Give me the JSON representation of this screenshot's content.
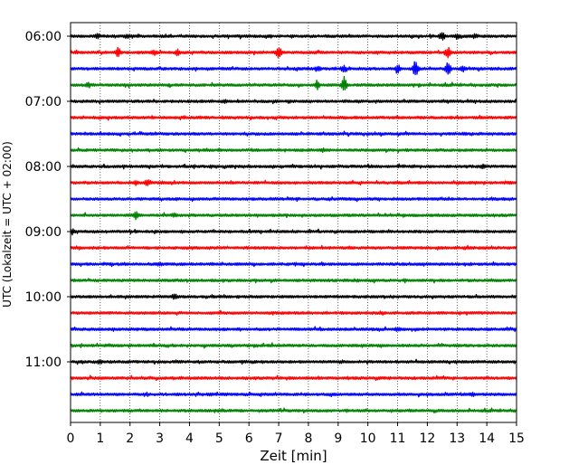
{
  "chart_data": {
    "type": "line",
    "title": "",
    "xlabel": "Zeit  [min]",
    "ylabel": "UTC (Lokalzeit = UTC + 02:00)",
    "xlim": [
      0,
      15
    ],
    "x_ticks": [
      "0",
      "1",
      "2",
      "3",
      "4",
      "5",
      "6",
      "7",
      "8",
      "9",
      "10",
      "11",
      "12",
      "13",
      "14",
      "15"
    ],
    "y_ticks": [
      "06:00",
      "07:00",
      "08:00",
      "09:00",
      "10:00",
      "11:00"
    ],
    "trace_count": 24,
    "trace_interval_min": 15,
    "grid": {
      "vertical": true,
      "style": "dotted"
    },
    "series_colors": [
      "#000000",
      "#ff0000",
      "#0000ff",
      "#008000"
    ],
    "events": [
      {
        "trace": 0,
        "time_min": 0.9,
        "amplitude": 0.5
      },
      {
        "trace": 0,
        "time_min": 1.9,
        "amplitude": 0.3
      },
      {
        "trace": 0,
        "time_min": 12.5,
        "amplitude": 0.7
      },
      {
        "trace": 0,
        "time_min": 13.0,
        "amplitude": 0.6
      },
      {
        "trace": 0,
        "time_min": 13.6,
        "amplitude": 0.4
      },
      {
        "trace": 1,
        "time_min": 1.6,
        "amplitude": 0.9
      },
      {
        "trace": 1,
        "time_min": 2.8,
        "amplitude": 0.5
      },
      {
        "trace": 1,
        "time_min": 3.6,
        "amplitude": 0.6
      },
      {
        "trace": 1,
        "time_min": 7.0,
        "amplitude": 1.2
      },
      {
        "trace": 1,
        "time_min": 12.7,
        "amplitude": 1.2
      },
      {
        "trace": 2,
        "time_min": 8.3,
        "amplitude": 0.5
      },
      {
        "trace": 2,
        "time_min": 9.2,
        "amplitude": 0.6
      },
      {
        "trace": 2,
        "time_min": 11.0,
        "amplitude": 1.0
      },
      {
        "trace": 2,
        "time_min": 11.6,
        "amplitude": 2.0
      },
      {
        "trace": 2,
        "time_min": 12.7,
        "amplitude": 1.6
      },
      {
        "trace": 2,
        "time_min": 13.2,
        "amplitude": 0.5
      },
      {
        "trace": 3,
        "time_min": 0.6,
        "amplitude": 0.5
      },
      {
        "trace": 3,
        "time_min": 8.3,
        "amplitude": 1.2
      },
      {
        "trace": 3,
        "time_min": 9.2,
        "amplitude": 1.8
      },
      {
        "trace": 4,
        "time_min": 5.2,
        "amplitude": 0.4
      },
      {
        "trace": 7,
        "time_min": 8.5,
        "amplitude": 0.3
      },
      {
        "trace": 8,
        "time_min": 13.9,
        "amplitude": 0.35
      },
      {
        "trace": 9,
        "time_min": 2.2,
        "amplitude": 0.6
      },
      {
        "trace": 9,
        "time_min": 2.6,
        "amplitude": 0.5
      },
      {
        "trace": 11,
        "time_min": 2.2,
        "amplitude": 0.8
      },
      {
        "trace": 11,
        "time_min": 3.5,
        "amplitude": 0.35
      },
      {
        "trace": 12,
        "time_min": 0.05,
        "amplitude": 0.6
      },
      {
        "trace": 14,
        "time_min": 3.0,
        "amplitude": 0.3
      },
      {
        "trace": 16,
        "time_min": 3.5,
        "amplitude": 0.45
      },
      {
        "trace": 18,
        "time_min": 11.0,
        "amplitude": 0.35
      },
      {
        "trace": 20,
        "time_min": 1.0,
        "amplitude": 0.35
      },
      {
        "trace": 22,
        "time_min": 13.5,
        "amplitude": 0.35
      }
    ]
  }
}
